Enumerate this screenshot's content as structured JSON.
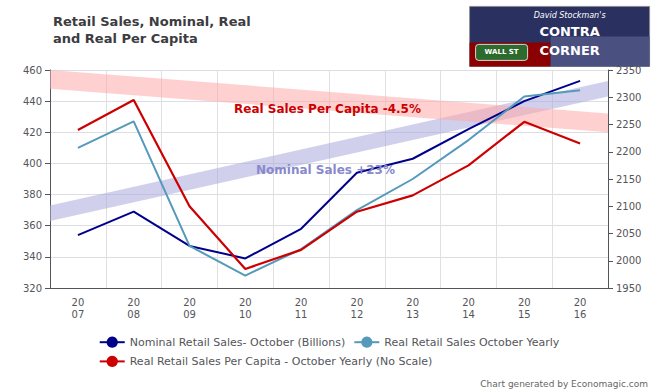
{
  "chart_data": {
    "type": "line",
    "title": "Retail Sales, Nominal, Real\nand Real Per Capita",
    "categories": [
      "20\n07",
      "20\n08",
      "20\n09",
      "20\n10",
      "20\n11",
      "20\n12",
      "20\n13",
      "20\n14",
      "20\n15",
      "20\n16"
    ],
    "series": [
      {
        "name": "Nominal Retail Sales- October (Billions)",
        "color": "#00008B",
        "values": [
          354,
          369,
          347,
          339,
          358,
          394,
          403,
          422,
          440,
          453
        ]
      },
      {
        "name": "Real Retail Sales October Yearly",
        "color": "#5599BB",
        "values": [
          410,
          427,
          347,
          328,
          345,
          370,
          390,
          415,
          443,
          447
        ]
      },
      {
        "name": "Real Retail Sales Per Capita - October Yearly (No Scale)",
        "color": "#CC0000",
        "values": [
          2240,
          2295,
          2100,
          1985,
          2020,
          2090,
          2120,
          2175,
          2255,
          2215
        ],
        "axis": "y2"
      }
    ],
    "ylim": [
      320,
      460
    ],
    "yticks": [
      320,
      340,
      360,
      380,
      400,
      420,
      440,
      460
    ],
    "y2lim": [
      1950,
      2350
    ],
    "y2ticks": [
      1950,
      2000,
      2050,
      2100,
      2150,
      2200,
      2250,
      2300,
      2350
    ],
    "grid": true,
    "legend": "bottom",
    "bands": [
      {
        "color": "#AAAADD",
        "start": [
          363,
          373
        ],
        "end": [
          443,
          453
        ]
      },
      {
        "color": "#FFAAAA",
        "start": [
          448,
          460
        ],
        "end": [
          420,
          432
        ]
      }
    ],
    "annotations": [
      {
        "text": "Nominal Sales +23%",
        "color": "#8888CC"
      },
      {
        "text": "Real Sales Per Capita -4.5%",
        "color": "#CC0000"
      }
    ],
    "watermark": "Chart generated by Economagic.com",
    "logo_texts": [
      "David Stockman's",
      "CONTRA",
      "CORNER",
      "WALL ST"
    ]
  }
}
